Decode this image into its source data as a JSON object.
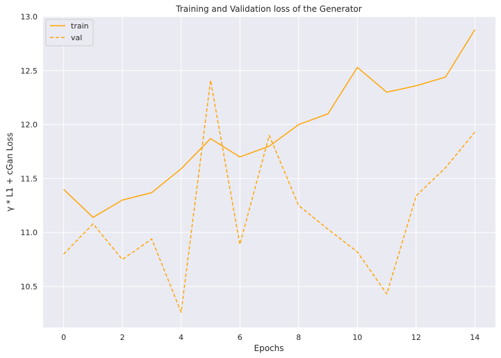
{
  "chart_data": {
    "type": "line",
    "title": "Training and Validation loss of the Generator",
    "xlabel": "Epochs",
    "ylabel": "γ * L1 + cGan Loss",
    "xlim": [
      -0.7,
      14.7
    ],
    "ylim": [
      10.12,
      13.0
    ],
    "xticks": [
      0,
      2,
      4,
      6,
      8,
      10,
      12,
      14
    ],
    "yticks": [
      10.5,
      11.0,
      11.5,
      12.0,
      12.5,
      13.0
    ],
    "ytick_labels": [
      "10.5",
      "11.0",
      "11.5",
      "12.0",
      "12.5",
      "13.0"
    ],
    "grid": true,
    "legend_position": "upper-left",
    "x": [
      0,
      1,
      2,
      3,
      4,
      5,
      6,
      7,
      8,
      9,
      10,
      11,
      12,
      13,
      14
    ],
    "series": [
      {
        "name": "train",
        "style": "solid",
        "color": "#FFA500",
        "values": [
          11.4,
          11.14,
          11.3,
          11.37,
          11.59,
          11.87,
          11.7,
          11.8,
          12.0,
          12.1,
          12.53,
          12.3,
          12.36,
          12.44,
          12.88
        ]
      },
      {
        "name": "val",
        "style": "dashed",
        "color": "#FFA500",
        "values": [
          10.8,
          11.08,
          10.75,
          10.94,
          10.26,
          12.41,
          10.89,
          11.9,
          11.25,
          11.03,
          10.82,
          10.43,
          11.34,
          11.6,
          11.93
        ]
      }
    ]
  },
  "colors": {
    "plot_background": "#EAEAF2",
    "grid": "#FFFFFF",
    "line": "#FFA500"
  }
}
